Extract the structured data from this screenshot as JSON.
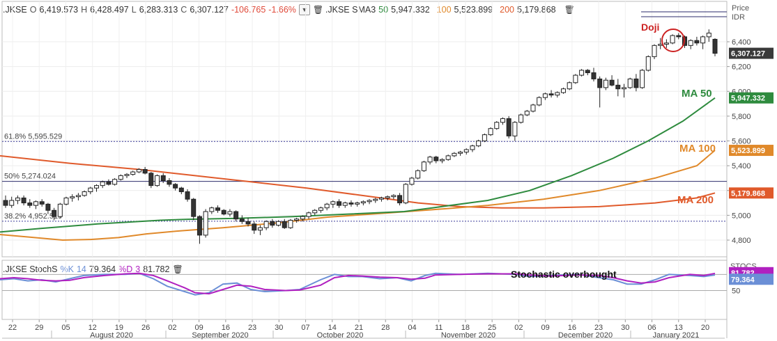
{
  "legend": {
    "symbol": ".JKSE",
    "o_label": "O",
    "o": "6,419.573",
    "h_label": "H",
    "h": "6,428.497",
    "l_label": "L",
    "l": "6,283.313",
    "c_label": "C",
    "c": "6,307.127",
    "change": "-106.765",
    "change_pct": "-1.66%",
    "sma_symbol": ".JKSE SMA3",
    "sma_p1": "50",
    "sma_v1": "5,947.332",
    "sma_p2": "100",
    "sma_v2": "5,523.899",
    "sma_p3": "200",
    "sma_v3": "5,179.868"
  },
  "stoch_legend": {
    "name": ".JKSE StochS",
    "k_label": "%K",
    "k_period": "14",
    "k_value": "79.364",
    "d_label": "%D",
    "d_period": "3",
    "d_value": "81.782"
  },
  "axis": {
    "price_header": "Price",
    "currency": "IDR",
    "stoch_header": "STOCS"
  },
  "colors": {
    "ma50": "#2e8b3e",
    "ma100": "#e0892a",
    "ma200": "#e05a2b",
    "stoch_k": "#6b8fd6",
    "stoch_d": "#b020c0",
    "last_price_tag": "#3a3a3a",
    "annotation_red": "#cc2222"
  },
  "price_labels": {
    "last": "6,307.127",
    "ma50": "5,947.332",
    "ma100": "5,523.899",
    "ma200": "5,179.868"
  },
  "stoch_labels": {
    "d": "81.782",
    "k": "79.364"
  },
  "fib_labels": {
    "f618": "61.8%  5,595.529",
    "f50": "50%    5,274.024",
    "f382": "38.2%  4,952.519"
  },
  "annotations": {
    "doji": "Doji",
    "ma50": "MA 50",
    "ma100": "MA 100",
    "ma200": "MA 200",
    "stoch": "Stochastic overbought"
  },
  "chart_data": {
    "type": "candlestick",
    "y_ticks": [
      4800,
      5000,
      5200,
      5400,
      5600,
      5800,
      6000,
      6200,
      6400
    ],
    "y_tick_labels": [
      "4,800",
      "5,000",
      "5,200",
      "5,400",
      "5,600",
      "5,800",
      "6,000",
      "6,200",
      "6,400"
    ],
    "ylim": [
      4720,
      6620
    ],
    "fib_levels": [
      {
        "label": "61.8%",
        "value": 5595.529
      },
      {
        "label": "50%",
        "value": 5274.024
      },
      {
        "label": "38.2%",
        "value": 4952.519
      }
    ],
    "x_day_ticks": [
      "22",
      "29",
      "05",
      "12",
      "19",
      "26",
      "02",
      "09",
      "16",
      "23",
      "30",
      "07",
      "14",
      "21",
      "28",
      "04",
      "11",
      "18",
      "25",
      "02",
      "09",
      "16",
      "23",
      "30",
      "06",
      "13",
      "20"
    ],
    "month_labels": [
      "August 2020",
      "September 2020",
      "October 2020",
      "November 2020",
      "December 2020",
      "January 2021"
    ],
    "candles": [
      [
        5120,
        5160,
        5060,
        5080
      ],
      [
        5080,
        5150,
        5060,
        5120
      ],
      [
        5120,
        5160,
        5090,
        5140
      ],
      [
        5140,
        5160,
        5080,
        5100
      ],
      [
        5100,
        5130,
        5060,
        5080
      ],
      [
        5080,
        5120,
        5050,
        5110
      ],
      [
        5110,
        5130,
        5070,
        5090
      ],
      [
        5090,
        5100,
        5010,
        5040
      ],
      [
        5040,
        5060,
        4960,
        4990
      ],
      [
        4990,
        5100,
        4980,
        5090
      ],
      [
        5090,
        5150,
        5080,
        5140
      ],
      [
        5140,
        5170,
        5110,
        5150
      ],
      [
        5150,
        5180,
        5120,
        5160
      ],
      [
        5160,
        5200,
        5150,
        5190
      ],
      [
        5190,
        5230,
        5170,
        5220
      ],
      [
        5220,
        5250,
        5190,
        5240
      ],
      [
        5240,
        5280,
        5220,
        5270
      ],
      [
        5270,
        5290,
        5240,
        5250
      ],
      [
        5250,
        5300,
        5240,
        5290
      ],
      [
        5290,
        5330,
        5280,
        5320
      ],
      [
        5320,
        5340,
        5300,
        5330
      ],
      [
        5330,
        5360,
        5320,
        5350
      ],
      [
        5350,
        5380,
        5340,
        5370
      ],
      [
        5370,
        5390,
        5330,
        5340
      ],
      [
        5340,
        5350,
        5220,
        5240
      ],
      [
        5240,
        5330,
        5230,
        5320
      ],
      [
        5320,
        5340,
        5260,
        5280
      ],
      [
        5280,
        5300,
        5230,
        5250
      ],
      [
        5250,
        5260,
        5200,
        5220
      ],
      [
        5220,
        5230,
        5170,
        5190
      ],
      [
        5190,
        5210,
        5110,
        5130
      ],
      [
        5130,
        5140,
        4960,
        4990
      ],
      [
        4990,
        5000,
        4770,
        4840
      ],
      [
        4840,
        5050,
        4820,
        5030
      ],
      [
        5030,
        5070,
        5010,
        5060
      ],
      [
        5060,
        5080,
        5020,
        5040
      ],
      [
        5040,
        5050,
        5000,
        5010
      ],
      [
        5010,
        5050,
        4990,
        5030
      ],
      [
        5030,
        5040,
        4950,
        4970
      ],
      [
        4970,
        5000,
        4930,
        4950
      ],
      [
        4950,
        4980,
        4910,
        4930
      ],
      [
        4930,
        4950,
        4850,
        4880
      ],
      [
        4880,
        4920,
        4840,
        4900
      ],
      [
        4900,
        4960,
        4880,
        4950
      ],
      [
        4950,
        4970,
        4900,
        4920
      ],
      [
        4920,
        4960,
        4910,
        4950
      ],
      [
        4950,
        4970,
        4890,
        4900
      ],
      [
        4900,
        4970,
        4890,
        4960
      ],
      [
        4960,
        4980,
        4940,
        4970
      ],
      [
        4970,
        5000,
        4950,
        4990
      ],
      [
        4990,
        5030,
        4970,
        5020
      ],
      [
        5020,
        5050,
        5000,
        5040
      ],
      [
        5040,
        5070,
        5020,
        5060
      ],
      [
        5060,
        5100,
        5040,
        5090
      ],
      [
        5090,
        5120,
        5060,
        5110
      ],
      [
        5110,
        5130,
        5060,
        5080
      ],
      [
        5080,
        5110,
        5060,
        5100
      ],
      [
        5100,
        5120,
        5070,
        5090
      ],
      [
        5090,
        5110,
        5070,
        5100
      ],
      [
        5100,
        5120,
        5080,
        5110
      ],
      [
        5110,
        5130,
        5090,
        5120
      ],
      [
        5120,
        5140,
        5100,
        5130
      ],
      [
        5130,
        5150,
        5110,
        5140
      ],
      [
        5140,
        5160,
        5120,
        5150
      ],
      [
        5150,
        5170,
        5130,
        5160
      ],
      [
        5160,
        5180,
        5080,
        5100
      ],
      [
        5100,
        5260,
        5090,
        5250
      ],
      [
        5250,
        5310,
        5240,
        5300
      ],
      [
        5300,
        5370,
        5290,
        5360
      ],
      [
        5360,
        5440,
        5350,
        5430
      ],
      [
        5430,
        5480,
        5410,
        5470
      ],
      [
        5470,
        5480,
        5420,
        5440
      ],
      [
        5440,
        5460,
        5420,
        5450
      ],
      [
        5450,
        5490,
        5440,
        5480
      ],
      [
        5480,
        5510,
        5470,
        5500
      ],
      [
        5500,
        5520,
        5480,
        5510
      ],
      [
        5510,
        5540,
        5490,
        5530
      ],
      [
        5530,
        5570,
        5510,
        5560
      ],
      [
        5560,
        5610,
        5550,
        5600
      ],
      [
        5600,
        5660,
        5590,
        5650
      ],
      [
        5650,
        5710,
        5640,
        5700
      ],
      [
        5700,
        5760,
        5690,
        5750
      ],
      [
        5750,
        5790,
        5730,
        5780
      ],
      [
        5780,
        5800,
        5620,
        5640
      ],
      [
        5640,
        5760,
        5600,
        5750
      ],
      [
        5750,
        5820,
        5740,
        5810
      ],
      [
        5810,
        5850,
        5800,
        5840
      ],
      [
        5840,
        5900,
        5830,
        5890
      ],
      [
        5890,
        5960,
        5880,
        5950
      ],
      [
        5950,
        5990,
        5930,
        5980
      ],
      [
        5980,
        6010,
        5950,
        5970
      ],
      [
        5970,
        6000,
        5950,
        5990
      ],
      [
        5990,
        6030,
        5980,
        6020
      ],
      [
        6020,
        6080,
        6010,
        6070
      ],
      [
        6070,
        6140,
        6060,
        6130
      ],
      [
        6130,
        6180,
        6120,
        6170
      ],
      [
        6170,
        6180,
        6130,
        6150
      ],
      [
        6150,
        6190,
        6080,
        6100
      ],
      [
        6100,
        6120,
        5870,
        6030
      ],
      [
        6030,
        6110,
        6010,
        6090
      ],
      [
        6090,
        6130,
        6040,
        6050
      ],
      [
        6050,
        6100,
        5960,
        6020
      ],
      [
        6020,
        6060,
        5950,
        6030
      ],
      [
        6030,
        6110,
        6020,
        6100
      ],
      [
        6100,
        6140,
        6000,
        6030
      ],
      [
        6030,
        6180,
        6020,
        6170
      ],
      [
        6170,
        6290,
        6160,
        6280
      ],
      [
        6280,
        6380,
        6260,
        6370
      ],
      [
        6370,
        6430,
        6340,
        6380
      ],
      [
        6380,
        6420,
        6350,
        6390
      ],
      [
        6390,
        6460,
        6380,
        6450
      ],
      [
        6450,
        6470,
        6420,
        6440
      ],
      [
        6440,
        6450,
        6350,
        6370
      ],
      [
        6370,
        6420,
        6340,
        6410
      ],
      [
        6410,
        6440,
        6370,
        6390
      ],
      [
        6390,
        6450,
        6340,
        6440
      ],
      [
        6440,
        6500,
        6400,
        6470
      ],
      [
        6420,
        6428,
        6283,
        6307
      ]
    ],
    "ma50": [
      [
        0,
        4865
      ],
      [
        60,
        4895
      ],
      [
        140,
        4930
      ],
      [
        230,
        4960
      ],
      [
        270,
        4968
      ],
      [
        340,
        4975
      ],
      [
        420,
        4990
      ],
      [
        500,
        5010
      ],
      [
        580,
        5030
      ],
      [
        620,
        5060
      ],
      [
        700,
        5120
      ],
      [
        760,
        5200
      ],
      [
        820,
        5320
      ],
      [
        880,
        5460
      ],
      [
        930,
        5600
      ],
      [
        980,
        5760
      ],
      [
        1026,
        5947
      ]
    ],
    "ma100": [
      [
        0,
        4845
      ],
      [
        40,
        4825
      ],
      [
        90,
        4800
      ],
      [
        130,
        4805
      ],
      [
        170,
        4820
      ],
      [
        210,
        4850
      ],
      [
        260,
        4875
      ],
      [
        320,
        4900
      ],
      [
        400,
        4940
      ],
      [
        470,
        4985
      ],
      [
        560,
        5020
      ],
      [
        620,
        5045
      ],
      [
        700,
        5080
      ],
      [
        780,
        5130
      ],
      [
        860,
        5200
      ],
      [
        940,
        5300
      ],
      [
        1000,
        5400
      ],
      [
        1026,
        5524
      ]
    ],
    "ma200": [
      [
        0,
        5480
      ],
      [
        100,
        5420
      ],
      [
        200,
        5370
      ],
      [
        280,
        5320
      ],
      [
        360,
        5270
      ],
      [
        440,
        5220
      ],
      [
        520,
        5160
      ],
      [
        600,
        5100
      ],
      [
        660,
        5070
      ],
      [
        720,
        5060
      ],
      [
        780,
        5060
      ],
      [
        860,
        5070
      ],
      [
        940,
        5100
      ],
      [
        1000,
        5140
      ],
      [
        1026,
        5180
      ]
    ],
    "stoch_k": [
      [
        0,
        70
      ],
      [
        20,
        72
      ],
      [
        40,
        68
      ],
      [
        60,
        70
      ],
      [
        80,
        66
      ],
      [
        100,
        72
      ],
      [
        120,
        78
      ],
      [
        150,
        80
      ],
      [
        180,
        80
      ],
      [
        200,
        82
      ],
      [
        220,
        72
      ],
      [
        240,
        58
      ],
      [
        265,
        48
      ],
      [
        280,
        42
      ],
      [
        300,
        46
      ],
      [
        320,
        62
      ],
      [
        340,
        64
      ],
      [
        360,
        52
      ],
      [
        380,
        48
      ],
      [
        410,
        50
      ],
      [
        430,
        52
      ],
      [
        460,
        70
      ],
      [
        480,
        80
      ],
      [
        500,
        76
      ],
      [
        520,
        76
      ],
      [
        545,
        72
      ],
      [
        570,
        74
      ],
      [
        590,
        68
      ],
      [
        610,
        78
      ],
      [
        625,
        82
      ],
      [
        660,
        80
      ],
      [
        700,
        82
      ],
      [
        740,
        80
      ],
      [
        760,
        76
      ],
      [
        790,
        78
      ],
      [
        830,
        80
      ],
      [
        860,
        74
      ],
      [
        880,
        70
      ],
      [
        900,
        62
      ],
      [
        920,
        62
      ],
      [
        940,
        70
      ],
      [
        960,
        80
      ],
      [
        990,
        78
      ],
      [
        1010,
        76
      ],
      [
        1026,
        79
      ]
    ],
    "stoch_d": [
      [
        0,
        72
      ],
      [
        20,
        74
      ],
      [
        40,
        72
      ],
      [
        60,
        69
      ],
      [
        80,
        68
      ],
      [
        100,
        69
      ],
      [
        120,
        74
      ],
      [
        150,
        78
      ],
      [
        180,
        81
      ],
      [
        200,
        82
      ],
      [
        220,
        78
      ],
      [
        240,
        68
      ],
      [
        265,
        55
      ],
      [
        280,
        46
      ],
      [
        300,
        44
      ],
      [
        320,
        52
      ],
      [
        340,
        60
      ],
      [
        360,
        58
      ],
      [
        380,
        52
      ],
      [
        410,
        50
      ],
      [
        430,
        51
      ],
      [
        460,
        60
      ],
      [
        480,
        74
      ],
      [
        500,
        78
      ],
      [
        520,
        77
      ],
      [
        545,
        75
      ],
      [
        570,
        74
      ],
      [
        590,
        71
      ],
      [
        610,
        73
      ],
      [
        625,
        79
      ],
      [
        660,
        80
      ],
      [
        700,
        81
      ],
      [
        740,
        81
      ],
      [
        760,
        79
      ],
      [
        790,
        77
      ],
      [
        830,
        79
      ],
      [
        860,
        78
      ],
      [
        880,
        74
      ],
      [
        900,
        68
      ],
      [
        920,
        64
      ],
      [
        940,
        66
      ],
      [
        960,
        74
      ],
      [
        990,
        80
      ],
      [
        1010,
        78
      ],
      [
        1026,
        82
      ]
    ]
  }
}
